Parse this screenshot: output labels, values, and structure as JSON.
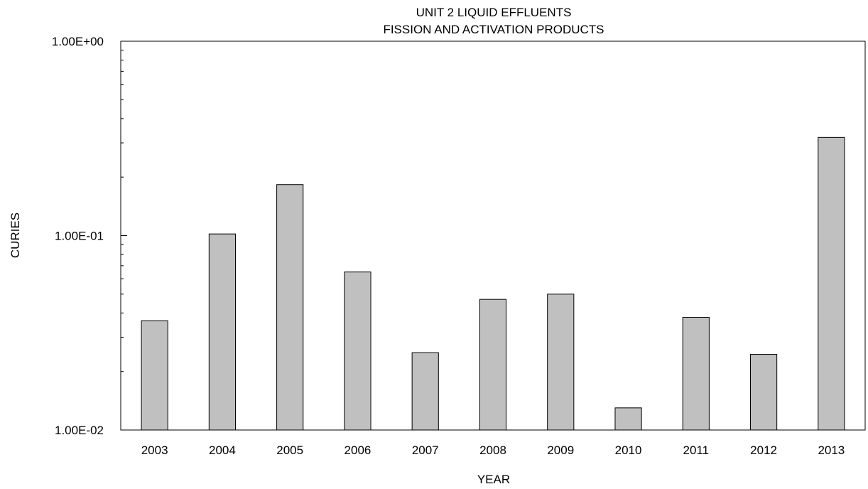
{
  "chart_data": {
    "type": "bar",
    "title_line1": "UNIT 2 LIQUID EFFLUENTS",
    "title_line2": "FISSION AND ACTIVATION PRODUCTS",
    "xlabel": "YEAR",
    "ylabel": "CURIES",
    "y_scale": "log",
    "ylim": [
      0.01,
      1.0
    ],
    "y_tick_labels": [
      "1.00E-02",
      "1.00E-01",
      "1.00E+00"
    ],
    "grid": false,
    "legend": "none",
    "categories": [
      "2003",
      "2004",
      "2005",
      "2006",
      "2007",
      "2008",
      "2009",
      "2010",
      "2011",
      "2012",
      "2013"
    ],
    "values": [
      0.0365,
      0.102,
      0.183,
      0.065,
      0.025,
      0.047,
      0.05,
      0.013,
      0.038,
      0.0245,
      0.32
    ],
    "bar_color": "#c0c0c0",
    "bar_edge_color": "#000000"
  }
}
